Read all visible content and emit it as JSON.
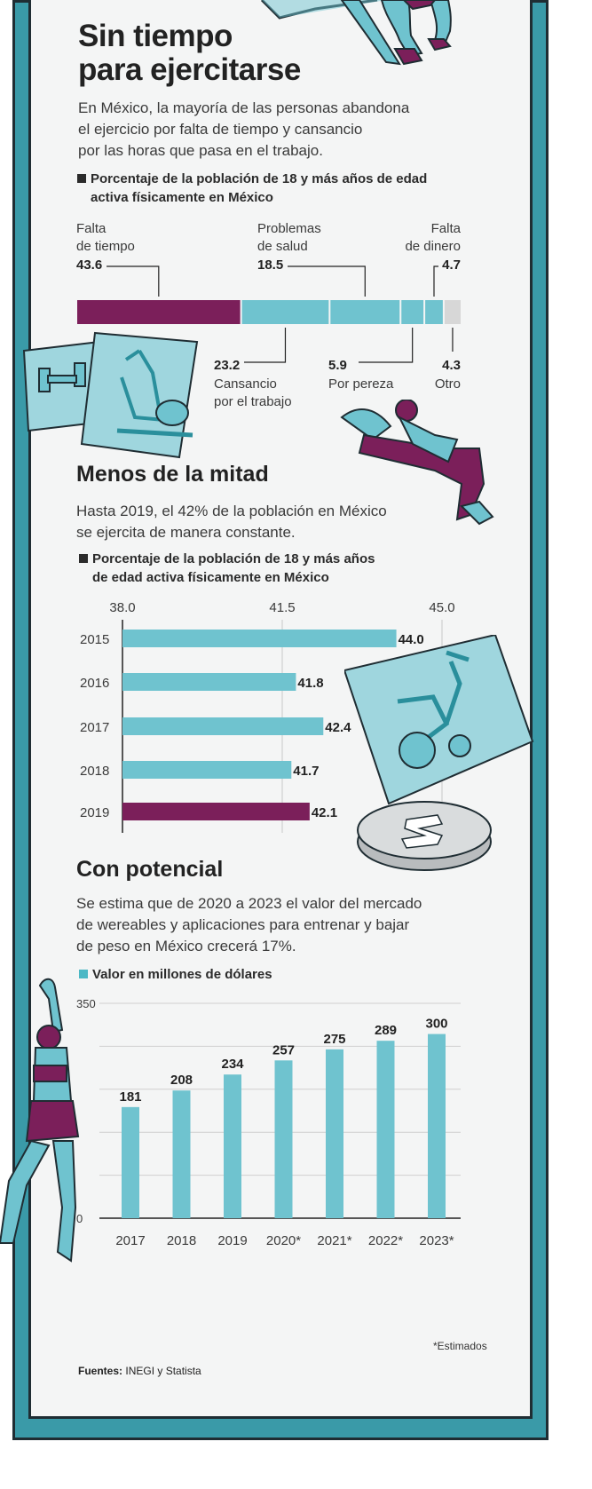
{
  "header": {
    "title_line1": "Sin tiempo",
    "title_line2": "para ejercitarse",
    "subtitle": [
      "En México, la mayoría de las personas abandona",
      "el ejercicio por falta de tiempo y cansancio",
      "por las horas que pasa en el trabajo."
    ]
  },
  "section1": {
    "caption": [
      "Porcentaje de la población de 18 y más años de edad",
      "activa físicamente en México"
    ]
  },
  "section2": {
    "title": "Menos de la mitad",
    "subtitle": [
      "Hasta 2019, el 42% de la población en México",
      "se ejercita de manera constante."
    ],
    "caption": [
      "Porcentaje de la población de 18 y más años",
      "de edad activa físicamente en México"
    ]
  },
  "section3": {
    "title": "Con potencial",
    "subtitle": [
      "Se estima que de 2020 a 2023 el valor del mercado",
      "de wereables y aplicaciones para entrenar y bajar",
      "de peso en México crecerá 17%."
    ],
    "caption": "Valor en millones de dólares",
    "footnote": "*Estimados"
  },
  "sources": {
    "label": "Fuentes:",
    "value": "INEGI y Statista"
  },
  "colors": {
    "teal": "#6fc3cf",
    "purple": "#7b1f5a",
    "grey": "#d7d7d7",
    "frame": "#3a9aa8"
  },
  "chart_data": [
    {
      "type": "bar",
      "orientation": "stacked-horizontal",
      "segments": [
        {
          "label": [
            "Falta",
            "de tiempo"
          ],
          "value": "43.6",
          "num": 43.6,
          "color": "#7b1f5a",
          "label_position": "top"
        },
        {
          "label": [
            "Cansancio",
            "por el trabajo"
          ],
          "value": "23.2",
          "num": 23.2,
          "color": "#6fc3cf",
          "label_position": "bottom"
        },
        {
          "label": [
            "Problemas",
            "de salud"
          ],
          "value": "18.5",
          "num": 18.5,
          "color": "#6fc3cf",
          "label_position": "top"
        },
        {
          "label": [
            "Por pereza"
          ],
          "value": "5.9",
          "num": 5.9,
          "color": "#6fc3cf",
          "label_position": "bottom"
        },
        {
          "label": [
            "Falta",
            "de dinero"
          ],
          "value": "4.7",
          "num": 4.7,
          "color": "#6fc3cf",
          "label_position": "top"
        },
        {
          "label": [
            "Otro"
          ],
          "value": "4.3",
          "num": 4.3,
          "color": "#d7d7d7",
          "label_position": "bottom"
        }
      ]
    },
    {
      "type": "bar",
      "orientation": "horizontal",
      "categories": [
        "2015",
        "2016",
        "2017",
        "2018",
        "2019"
      ],
      "values": [
        44.0,
        41.8,
        42.4,
        41.7,
        42.1
      ],
      "value_labels": [
        "44.0",
        "41.8",
        "42.4",
        "41.7",
        "42.1"
      ],
      "highlight": "2019",
      "xlim": [
        38.0,
        45.0
      ],
      "xticks": [
        "38.0",
        "41.5",
        "45.0"
      ]
    },
    {
      "type": "bar",
      "orientation": "vertical",
      "categories": [
        "2017",
        "2018",
        "2019",
        "2020*",
        "2021*",
        "2022*",
        "2023*"
      ],
      "values": [
        181,
        208,
        234,
        257,
        275,
        289,
        300
      ],
      "ylim": [
        0,
        350
      ],
      "yticks": [
        "0",
        "350"
      ]
    }
  ]
}
